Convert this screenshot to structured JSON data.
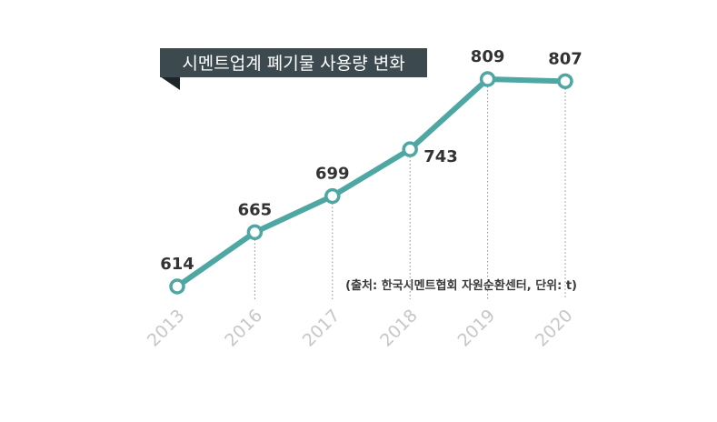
{
  "title": "시멘트업계 폐기물 사용량 변화",
  "source": "(출처: 한국시멘트협회 자원순환센터, 단위: t)",
  "colors": {
    "line": "#4fa7a3",
    "title_bg": "#3c4a4f",
    "title_shadow": "#1e2528",
    "guide": "#8a8a8a",
    "tick": "#c7c7c7"
  },
  "chart_data": {
    "type": "line",
    "title": "시멘트업계 폐기물 사용량 변화",
    "categories": [
      "2013",
      "2016",
      "2017",
      "2018",
      "2019",
      "2020"
    ],
    "series": [
      {
        "values": [
          614,
          665,
          699,
          743,
          809,
          807
        ]
      }
    ],
    "data_labels": [
      "614",
      "665",
      "699",
      "743",
      "809",
      "807"
    ],
    "xlabel": "",
    "ylabel": "",
    "unit": "t",
    "grid": false,
    "legend": "none"
  }
}
